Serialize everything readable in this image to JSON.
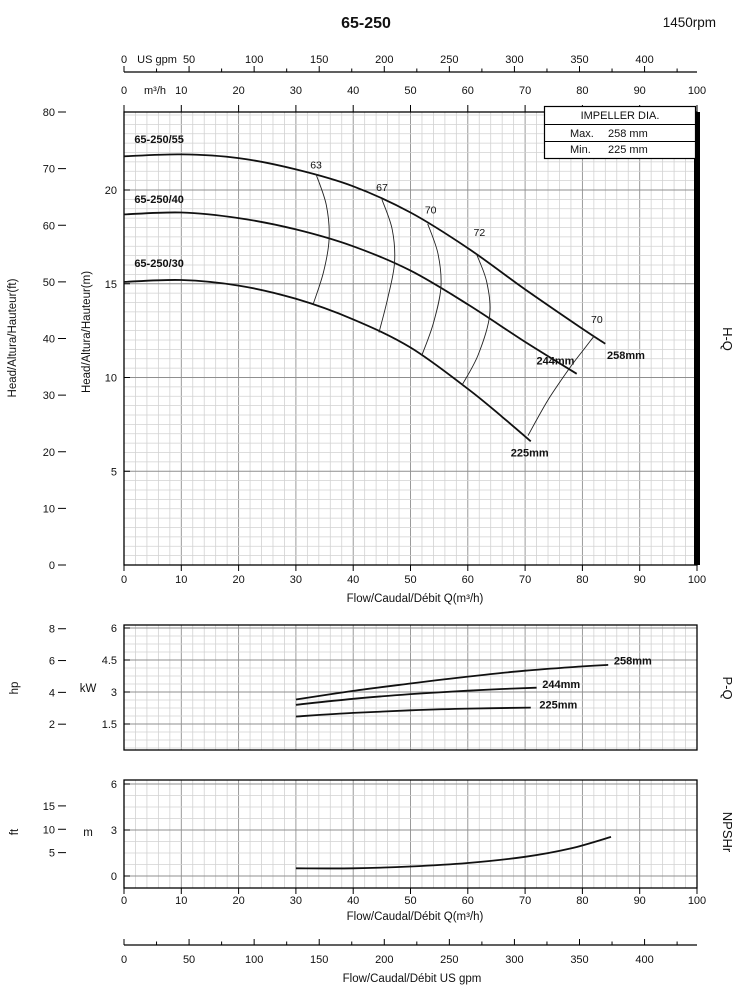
{
  "header": {
    "title": "65-250",
    "rpm": "1450rpm"
  },
  "legend": {
    "title": "IMPELLER DIA.",
    "max_label": "Max.",
    "max_value": "258 mm",
    "min_label": "Min.",
    "min_value": "225 mm"
  },
  "side_labels": {
    "hq": "H-Q",
    "pq": "P-Q",
    "npshr": "NPSHr"
  },
  "axes": {
    "top_gpm": {
      "unit": "US gpm",
      "ticks": [
        "0",
        "50",
        "100",
        "150",
        "200",
        "250",
        "300",
        "350",
        "400"
      ]
    },
    "top_m3h": {
      "unit": "m³/h",
      "ticks": [
        "0",
        "10",
        "20",
        "30",
        "40",
        "50",
        "60",
        "70",
        "80",
        "90",
        "100"
      ]
    },
    "head_ft": {
      "label": "Head/Altura/Hauteur(ft)",
      "ticks": [
        "0",
        "10",
        "20",
        "30",
        "40",
        "50",
        "60",
        "70",
        "80"
      ]
    },
    "head_m": {
      "label": "Head/Altura/Hauteur(m)",
      "ticks": [
        "5",
        "10",
        "15",
        "20"
      ]
    },
    "flow_main": {
      "label": "Flow/Caudal/Débit Q(m³/h)",
      "ticks": [
        "0",
        "10",
        "20",
        "30",
        "40",
        "50",
        "60",
        "70",
        "80",
        "90",
        "100"
      ]
    },
    "power_hp": {
      "unit": "hp",
      "ticks": [
        "2",
        "4",
        "6",
        "8"
      ]
    },
    "power_kw": {
      "unit": "kW",
      "ticks": [
        "1.5",
        "3",
        "4.5",
        "6"
      ]
    },
    "npsh_ft": {
      "unit": "ft",
      "ticks": [
        "5",
        "10",
        "15"
      ]
    },
    "npsh_m": {
      "unit": "m",
      "ticks": [
        "0",
        "3",
        "6"
      ]
    },
    "flow_npsh": {
      "label": "Flow/Caudal/Débit Q(m³/h)",
      "ticks": [
        "0",
        "10",
        "20",
        "30",
        "40",
        "50",
        "60",
        "70",
        "80",
        "90",
        "100"
      ]
    },
    "bottom_gpm": {
      "label": "Flow/Caudal/Débit  US gpm",
      "ticks": [
        "0",
        "50",
        "100",
        "150",
        "200",
        "250",
        "300",
        "350",
        "400"
      ]
    }
  },
  "chart_data": [
    {
      "id": "hq",
      "type": "line",
      "title": "H-Q",
      "xlabel": "Flow/Caudal/Débit Q(m³/h)",
      "ylabel": "Head/Altura/Hauteur(m)",
      "xlim": [
        0,
        100
      ],
      "ylim": [
        0,
        24.2
      ],
      "grid": true,
      "series": [
        {
          "name": "258mm",
          "model": "65-250/55",
          "points": [
            [
              0,
              21.8
            ],
            [
              10,
              21.9
            ],
            [
              20,
              21.7
            ],
            [
              30,
              21.1
            ],
            [
              40,
              20.2
            ],
            [
              50,
              18.8
            ],
            [
              60,
              16.9
            ],
            [
              70,
              14.7
            ],
            [
              80,
              12.6
            ],
            [
              84,
              11.8
            ]
          ],
          "label_at": [
            84.3,
            11.0
          ],
          "model_label_at": [
            1.8,
            22.5
          ]
        },
        {
          "name": "244mm",
          "model": "65-250/40",
          "points": [
            [
              0,
              18.7
            ],
            [
              10,
              18.8
            ],
            [
              20,
              18.5
            ],
            [
              30,
              17.9
            ],
            [
              40,
              17.0
            ],
            [
              50,
              15.7
            ],
            [
              60,
              13.9
            ],
            [
              70,
              11.9
            ],
            [
              79,
              10.2
            ]
          ],
          "label_at": [
            72,
            10.7
          ],
          "model_label_at": [
            1.8,
            19.3
          ]
        },
        {
          "name": "225mm",
          "model": "65-250/30",
          "points": [
            [
              0,
              15.1
            ],
            [
              10,
              15.2
            ],
            [
              20,
              14.9
            ],
            [
              30,
              14.2
            ],
            [
              40,
              13.1
            ],
            [
              50,
              11.6
            ],
            [
              60,
              9.4
            ],
            [
              66,
              7.9
            ],
            [
              71,
              6.6
            ]
          ],
          "label_at": [
            67.5,
            5.8
          ],
          "model_label_at": [
            1.8,
            15.9
          ]
        }
      ],
      "efficiency": [
        {
          "label": "63",
          "label_at": [
            32.5,
            21.15
          ],
          "points": [
            [
              33.5,
              20.85
            ],
            [
              35.3,
              19.2
            ],
            [
              35.8,
              17.4
            ],
            [
              34.8,
              15.6
            ],
            [
              33,
              13.9
            ]
          ]
        },
        {
          "label": "67",
          "label_at": [
            44,
            19.95
          ],
          "points": [
            [
              45,
              19.5
            ],
            [
              46.8,
              17.9
            ],
            [
              47.2,
              16.1
            ],
            [
              46,
              14.2
            ],
            [
              44.5,
              12.4
            ]
          ]
        },
        {
          "label": "70",
          "label_at": [
            52.5,
            18.75
          ],
          "points": [
            [
              53,
              18.2
            ],
            [
              54.8,
              16.6
            ],
            [
              55.3,
              14.8
            ],
            [
              54,
              12.9
            ],
            [
              52,
              11.2
            ]
          ]
        },
        {
          "label": "72",
          "label_at": [
            61,
            17.55
          ],
          "points": [
            [
              61.5,
              16.6
            ],
            [
              63.3,
              15.1
            ],
            [
              63.8,
              13.3
            ],
            [
              61.8,
              11.2
            ],
            [
              59,
              9.6
            ]
          ]
        },
        {
          "label": "70",
          "label_at": [
            81.5,
            12.9
          ],
          "points": [
            [
              82,
              12.2
            ],
            [
              80.5,
              11.6
            ],
            [
              78,
              10.6
            ],
            [
              74,
              8.8
            ],
            [
              70.5,
              6.9
            ]
          ]
        }
      ]
    },
    {
      "id": "pq",
      "type": "line",
      "title": "P-Q",
      "xlabel": "Flow/Caudal/Débit Q(m³/h)",
      "ylabel": "Power kW",
      "xlim": [
        0,
        100
      ],
      "ylim": [
        0.3,
        6.1
      ],
      "grid": true,
      "series": [
        {
          "name": "258mm",
          "points": [
            [
              30,
              2.65
            ],
            [
              40,
              3.05
            ],
            [
              50,
              3.4
            ],
            [
              60,
              3.72
            ],
            [
              70,
              4.0
            ],
            [
              80,
              4.2
            ],
            [
              84.5,
              4.27
            ]
          ],
          "label_at": [
            85.5,
            4.28
          ]
        },
        {
          "name": "244mm",
          "points": [
            [
              30,
              2.4
            ],
            [
              40,
              2.68
            ],
            [
              50,
              2.9
            ],
            [
              60,
              3.06
            ],
            [
              66,
              3.14
            ],
            [
              72,
              3.2
            ]
          ],
          "label_at": [
            73,
            3.18
          ]
        },
        {
          "name": "225mm",
          "points": [
            [
              30,
              1.85
            ],
            [
              40,
              2.02
            ],
            [
              50,
              2.14
            ],
            [
              60,
              2.22
            ],
            [
              71,
              2.27
            ]
          ],
          "label_at": [
            72.5,
            2.22
          ]
        }
      ]
    },
    {
      "id": "np",
      "type": "line",
      "title": "NPSHr",
      "xlabel": "Flow/Caudal/Débit Q(m³/h)",
      "ylabel": "NPSH m",
      "xlim": [
        0,
        100
      ],
      "ylim": [
        -0.8,
        6.3
      ],
      "grid": true,
      "series": [
        {
          "name": "NPSHr",
          "points": [
            [
              30,
              0.5
            ],
            [
              40,
              0.5
            ],
            [
              50,
              0.62
            ],
            [
              60,
              0.85
            ],
            [
              70,
              1.25
            ],
            [
              78,
              1.8
            ],
            [
              85,
              2.55
            ]
          ]
        }
      ]
    }
  ]
}
